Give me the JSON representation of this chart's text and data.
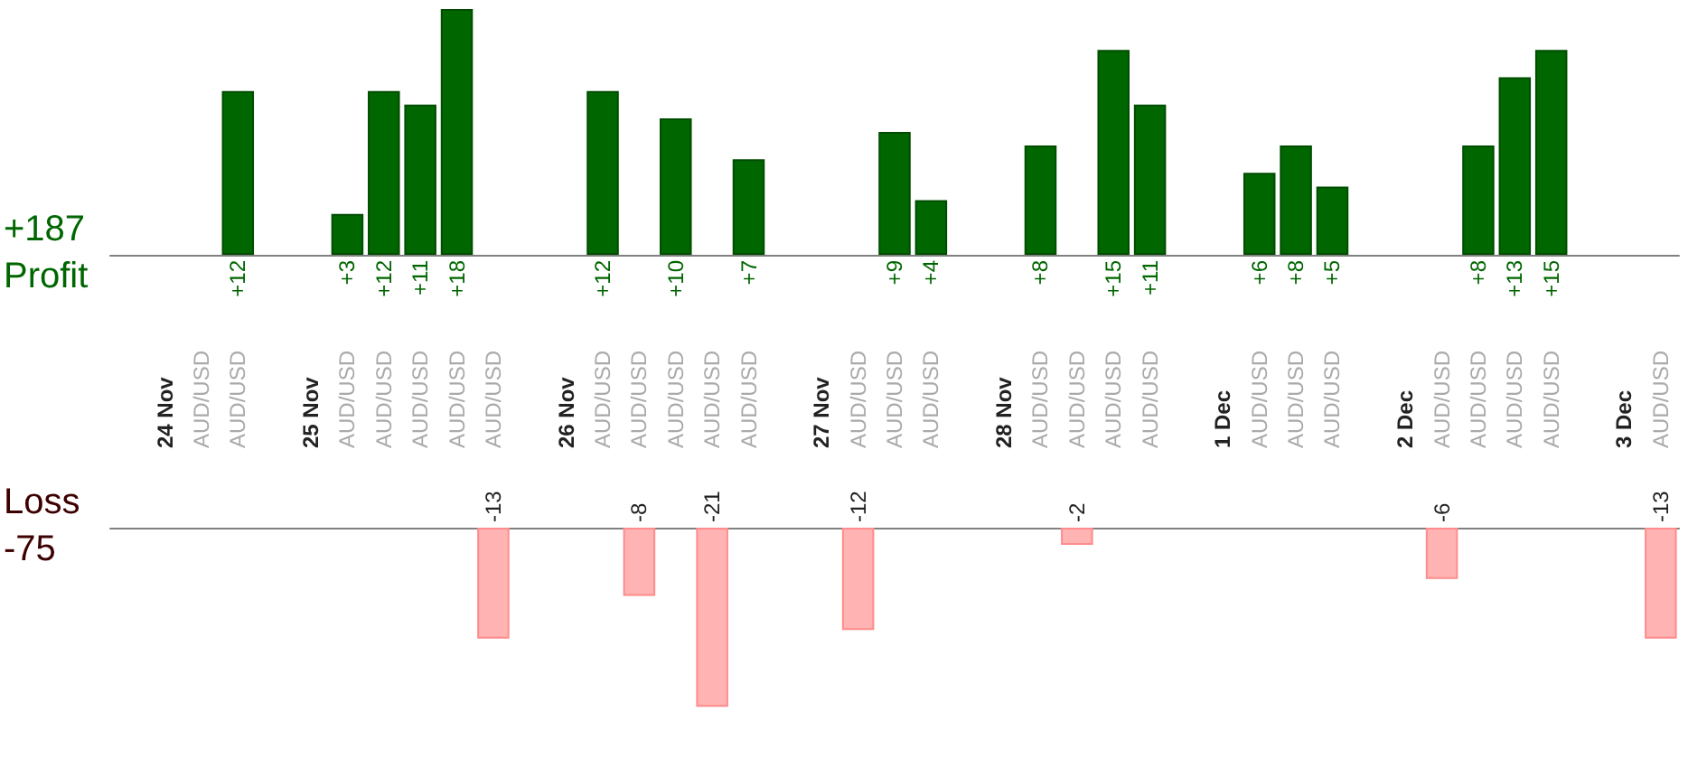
{
  "chart_data": [
    {
      "type": "bar",
      "annotations": [
        "+187",
        "Profit"
      ],
      "color": "#006600",
      "tick_labels": "x",
      "categories": [
        null,
        "24 Nov",
        "AUD/USD",
        "AUD/USD",
        null,
        "25 Nov",
        "AUD/USD",
        "AUD/USD",
        "AUD/USD",
        "AUD/USD",
        "AUD/USD",
        null,
        "26 Nov",
        "AUD/USD",
        "AUD/USD",
        "AUD/USD",
        "AUD/USD",
        "AUD/USD",
        null,
        "27 Nov",
        "AUD/USD",
        "AUD/USD",
        "AUD/USD",
        null,
        "28 Nov",
        "AUD/USD",
        "AUD/USD",
        "AUD/USD",
        "AUD/USD",
        null,
        "1 Dec",
        "AUD/USD",
        "AUD/USD",
        "AUD/USD",
        null,
        "2 Dec",
        "AUD/USD",
        "AUD/USD",
        "AUD/USD",
        "AUD/USD",
        null,
        "3 Dec",
        "AUD/USD"
      ],
      "values": [
        null,
        null,
        null,
        12,
        null,
        null,
        3,
        12,
        11,
        18,
        null,
        null,
        null,
        12,
        null,
        10,
        null,
        7,
        null,
        null,
        null,
        9,
        4,
        null,
        null,
        8,
        null,
        15,
        11,
        null,
        null,
        6,
        8,
        5,
        null,
        null,
        null,
        8,
        13,
        15,
        null,
        null,
        null
      ],
      "value_labels": [
        null,
        null,
        null,
        "+12",
        null,
        null,
        "+3",
        "+12",
        "+11",
        "+18",
        null,
        null,
        null,
        "+12",
        null,
        "+10",
        null,
        "+7",
        null,
        null,
        null,
        "+9",
        "+4",
        null,
        null,
        "+8",
        null,
        "+15",
        "+11",
        null,
        null,
        "+6",
        "+8",
        "+5",
        null,
        null,
        null,
        "+8",
        "+13",
        "+15",
        null,
        null,
        null
      ]
    },
    {
      "type": "bar",
      "annotations": [
        "Loss",
        "-75"
      ],
      "color": "#ffb3b3",
      "tick_labels": false,
      "categories": [
        null,
        null,
        null,
        null,
        null,
        null,
        null,
        null,
        null,
        null,
        null,
        null,
        null,
        null,
        null,
        null,
        null,
        null,
        null,
        null,
        null,
        null,
        null,
        null,
        null,
        null,
        null,
        null,
        null,
        null,
        null,
        null,
        null,
        null,
        null,
        null,
        null,
        null,
        null,
        null,
        null,
        null,
        null
      ],
      "values": [
        null,
        null,
        null,
        null,
        null,
        null,
        null,
        null,
        null,
        null,
        -13,
        null,
        null,
        null,
        -8,
        null,
        -21,
        null,
        null,
        null,
        -12,
        null,
        null,
        null,
        null,
        null,
        -2,
        null,
        null,
        null,
        null,
        null,
        null,
        null,
        null,
        null,
        -6,
        null,
        null,
        null,
        null,
        null,
        -13
      ],
      "value_labels": [
        null,
        null,
        null,
        null,
        null,
        null,
        null,
        null,
        null,
        null,
        "-13",
        null,
        null,
        null,
        "-8",
        null,
        "-21",
        null,
        null,
        null,
        "-12",
        null,
        null,
        null,
        null,
        null,
        "-2",
        null,
        null,
        null,
        null,
        null,
        null,
        null,
        null,
        null,
        "-6",
        null,
        null,
        null,
        null,
        null,
        "-13"
      ]
    }
  ]
}
